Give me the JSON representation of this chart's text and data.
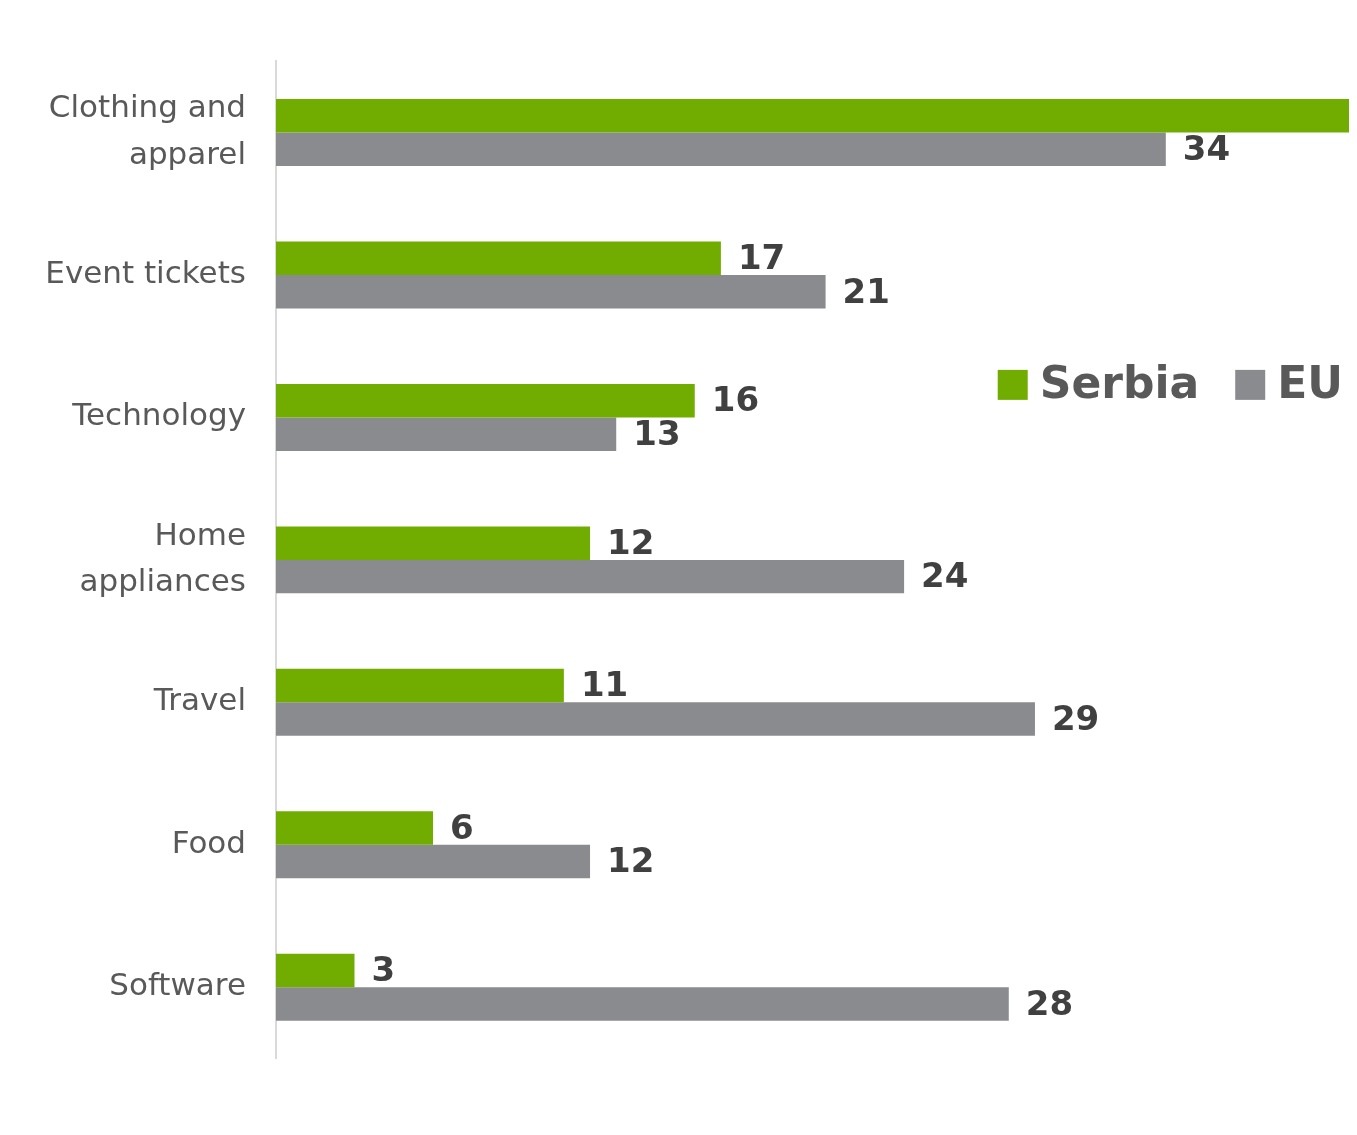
{
  "chart_data": {
    "type": "bar",
    "orientation": "horizontal",
    "categories": [
      "Clothing and apparel",
      "Event tickets",
      "Technology",
      "Home appliances",
      "Travel",
      "Food",
      "Software"
    ],
    "series": [
      {
        "name": "Serbia",
        "color": "#70ad00",
        "values": [
          41,
          17,
          16,
          12,
          11,
          6,
          3
        ],
        "value_labels": [
          null,
          "17",
          "16",
          "12",
          "11",
          "6",
          "3"
        ]
      },
      {
        "name": "EU",
        "color": "#898b8e",
        "values": [
          34,
          21,
          13,
          24,
          29,
          12,
          28
        ],
        "value_labels": [
          "34",
          "21",
          "13",
          "24",
          "29",
          "12",
          "28"
        ]
      }
    ],
    "xlim": [
      0,
      41
    ],
    "legend": "right",
    "tick_labels": "y"
  }
}
